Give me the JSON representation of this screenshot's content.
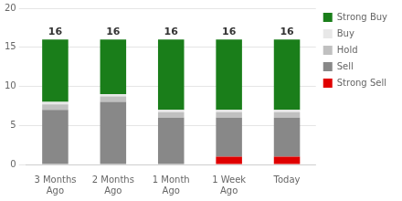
{
  "chart_data": {
    "type": "bar",
    "stacked": true,
    "categories": [
      "3 Months\nAgo",
      "2 Months\nAgo",
      "1 Month\nAgo",
      "1 Week\nAgo",
      "Today"
    ],
    "series": [
      {
        "name": "Strong Sell",
        "color": "#e00000",
        "values": [
          0,
          0,
          0,
          1,
          1
        ]
      },
      {
        "name": "Sell",
        "color": "#888888",
        "values": [
          7,
          8,
          6,
          5,
          5
        ]
      },
      {
        "name": "Hold",
        "color": "#c0c0c0",
        "values": [
          0.7,
          0.7,
          0.7,
          0.7,
          0.7
        ]
      },
      {
        "name": "Buy",
        "color": "#e8e8e8",
        "values": [
          0.3,
          0.3,
          0.3,
          0.3,
          0.3
        ]
      },
      {
        "name": "Strong Buy",
        "color": "#1a7e1a",
        "values": [
          8,
          7,
          9,
          9,
          9
        ]
      }
    ],
    "totals": [
      16,
      16,
      16,
      16,
      16
    ],
    "ylim": [
      0,
      20
    ],
    "yticks": [
      0,
      5,
      10,
      15,
      20
    ],
    "grid": true,
    "legend": "right"
  }
}
